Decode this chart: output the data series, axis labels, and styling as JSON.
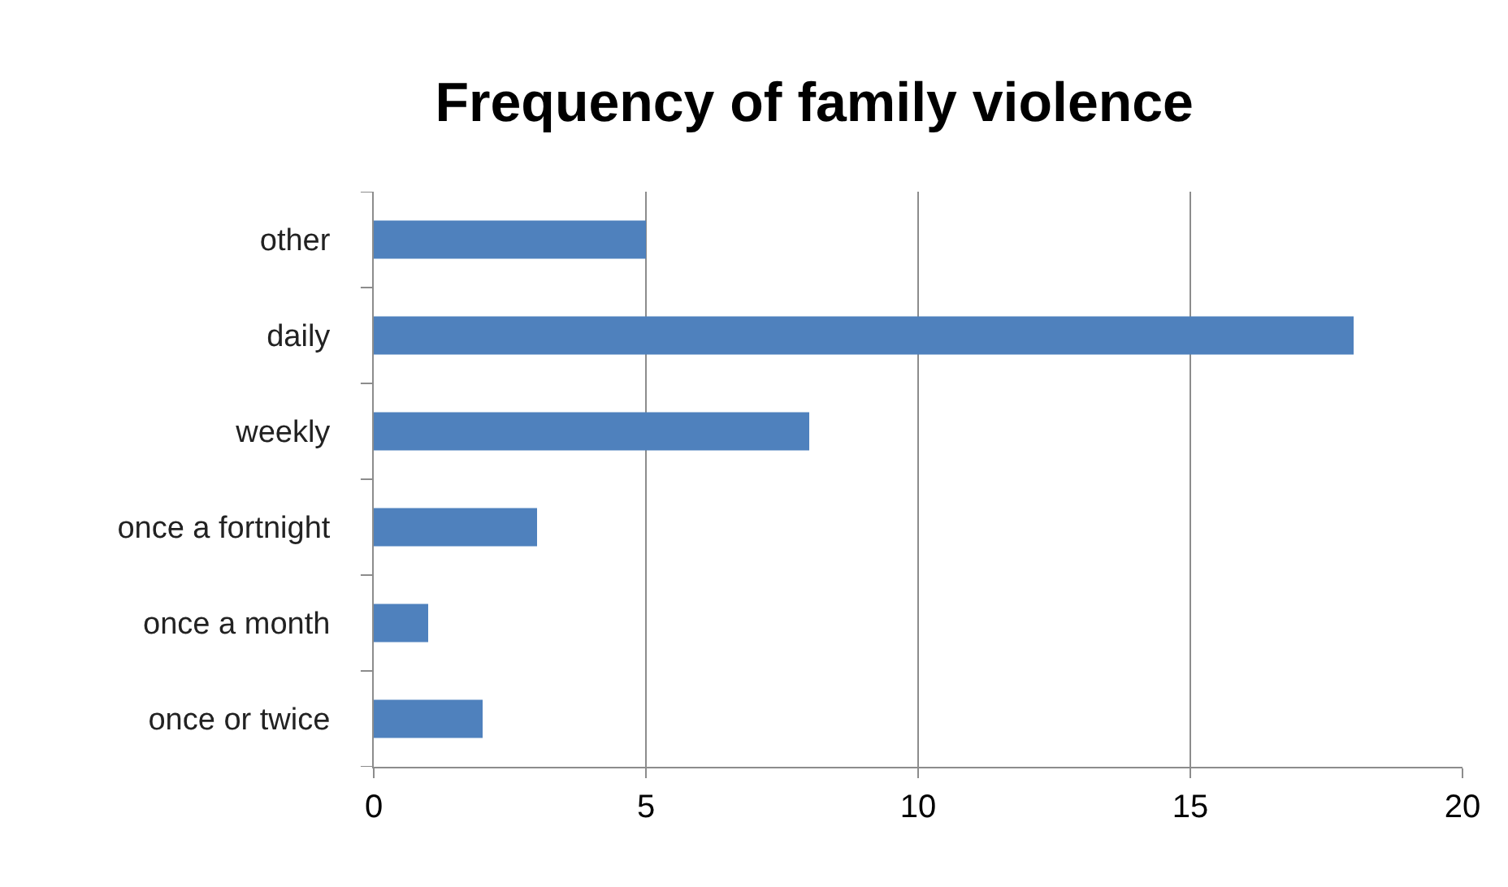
{
  "chart_data": {
    "type": "bar",
    "orientation": "horizontal",
    "title": "Frequency of family violence",
    "categories": [
      "other",
      "daily",
      "weekly",
      "once a fortnight",
      "once a month",
      "once or twice"
    ],
    "values": [
      5,
      18,
      8,
      3,
      1,
      2
    ],
    "color": "#4f81bd",
    "xlim": [
      0,
      20
    ],
    "xticks": [
      0,
      5,
      10,
      15,
      20
    ],
    "grid": "x"
  }
}
